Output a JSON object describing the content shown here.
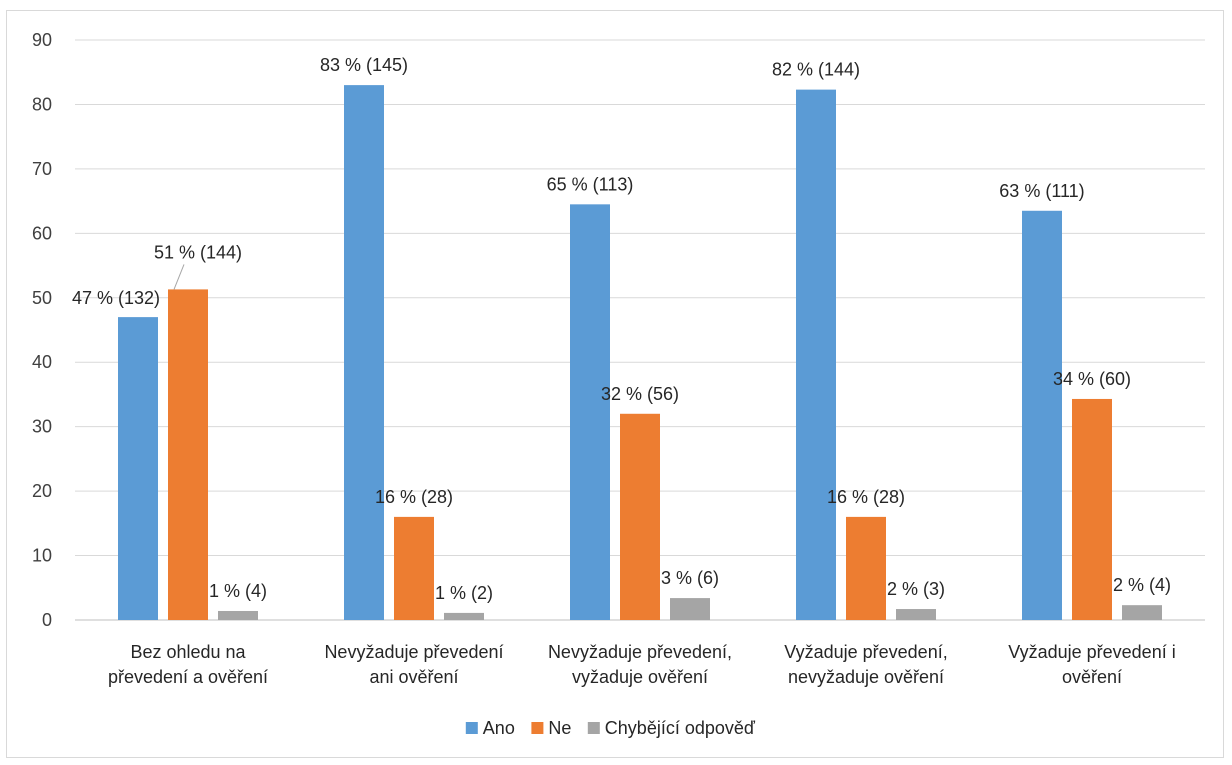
{
  "chart_data": {
    "type": "bar",
    "title": "",
    "xlabel": "",
    "ylabel": "",
    "ylim": [
      0,
      90
    ],
    "yticks": [
      0,
      10,
      20,
      30,
      40,
      50,
      60,
      70,
      80,
      90
    ],
    "grid": true,
    "legend_position": "bottom",
    "categories": [
      [
        "Bez ohledu na",
        "převedení a ověření"
      ],
      [
        "Nevyžaduje převedení",
        "ani ověření"
      ],
      [
        "Nevyžaduje převedení,",
        "vyžaduje ověření"
      ],
      [
        "Vyžaduje převedení,",
        "nevyžaduje ověření"
      ],
      [
        "Vyžaduje převedení i",
        "ověření"
      ]
    ],
    "series": [
      {
        "name": "Ano",
        "color": "#5b9bd5",
        "values": [
          47,
          83,
          64.5,
          82.3,
          63.5
        ],
        "labels": [
          "47 % (132)",
          "83 % (145)",
          "65 % (113)",
          "82 % (144)",
          "63 % (111)"
        ]
      },
      {
        "name": "Ne",
        "color": "#ed7d31",
        "values": [
          51.3,
          16,
          32,
          16,
          34.3
        ],
        "labels": [
          "51 % (144)",
          "16 % (28)",
          "32 % (56)",
          "16 % (28)",
          "34 % (60)"
        ]
      },
      {
        "name": "Chybějící odpověď",
        "color": "#a5a5a5",
        "values": [
          1.4,
          1.1,
          3.4,
          1.7,
          2.3
        ],
        "labels": [
          "1 % (4)",
          "1 % (2)",
          "3 % (6)",
          "2 % (3)",
          "2 % (4)"
        ]
      }
    ]
  }
}
